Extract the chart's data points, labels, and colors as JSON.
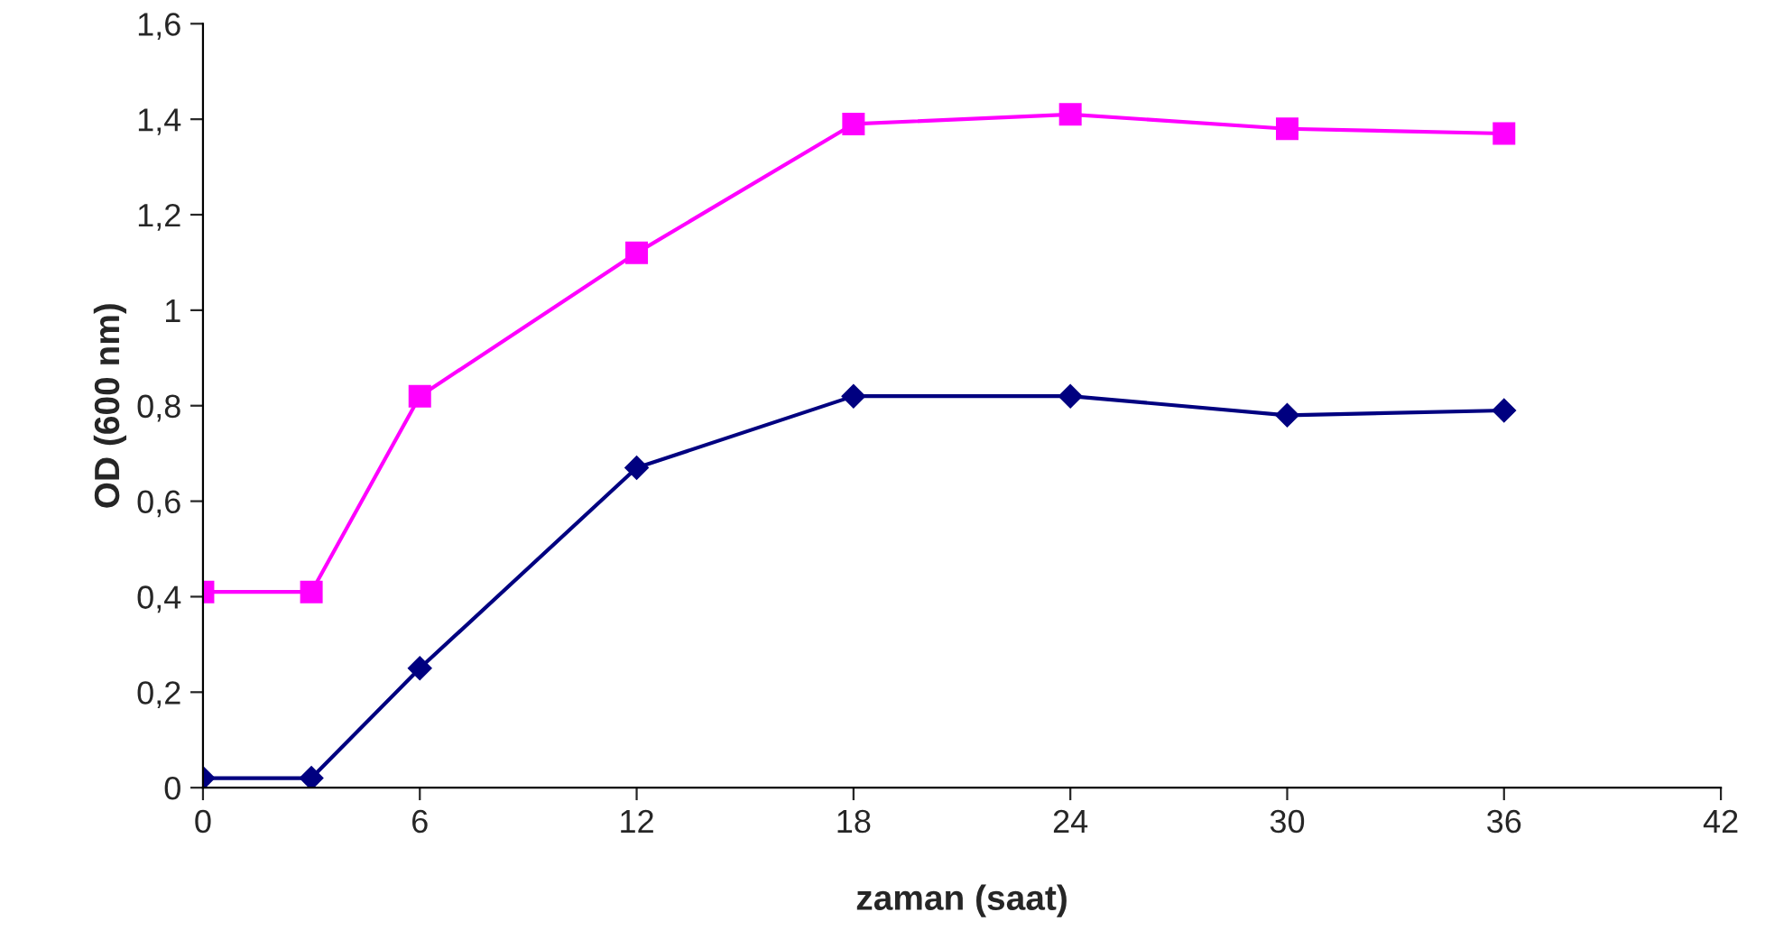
{
  "chart_data": {
    "type": "line",
    "xlabel": "zaman (saat)",
    "ylabel": "OD (600 nm)",
    "x": [
      0,
      3,
      6,
      12,
      18,
      24,
      30,
      36
    ],
    "series": [
      {
        "color": "#ff00ff",
        "marker": "square",
        "values": [
          0.41,
          0.41,
          0.82,
          1.12,
          1.39,
          1.41,
          1.38,
          1.37
        ]
      },
      {
        "color": "#000080",
        "marker": "diamond",
        "values": [
          0.02,
          0.02,
          0.25,
          0.67,
          0.82,
          0.82,
          0.78,
          0.79
        ]
      }
    ],
    "xlim": [
      0,
      42
    ],
    "xticks": [
      0,
      6,
      12,
      18,
      24,
      30,
      36,
      42
    ],
    "ylim": [
      0,
      1.6
    ],
    "yticks": [
      0,
      {
        "value": 0.2,
        "label": "0,2"
      },
      {
        "value": 0.4,
        "label": "0,4"
      },
      {
        "value": 0.6,
        "label": "0,6"
      },
      {
        "value": 0.8,
        "label": "0,8"
      },
      1,
      {
        "value": 1.2,
        "label": "1,2"
      },
      {
        "value": 1.4,
        "label": "1,4"
      },
      {
        "value": 1.6,
        "label": "1,6"
      }
    ],
    "grid": false,
    "legend": false,
    "line_style": "solid"
  }
}
